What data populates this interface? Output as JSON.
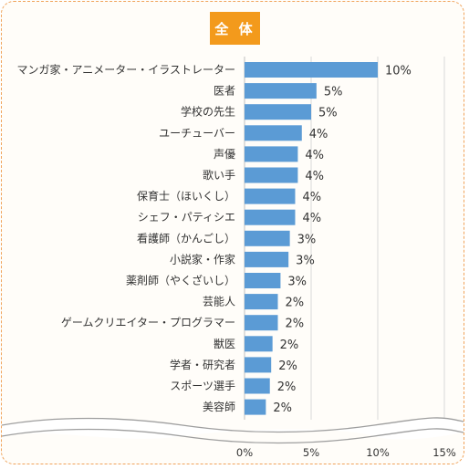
{
  "header": {
    "badge_label": "全 体"
  },
  "colors": {
    "bar": "#5b9bd5",
    "badge": "#f39a1c",
    "border": "#f0a35a",
    "grid": "#d9d9d9"
  },
  "chart_data": {
    "type": "bar",
    "orientation": "horizontal",
    "title": "全 体",
    "xlim": [
      0,
      15
    ],
    "xticks": [
      0,
      5,
      10,
      15
    ],
    "xtick_labels": [
      "0%",
      "5%",
      "10%",
      "15%"
    ],
    "grid": true,
    "categories": [
      "マンガ家・アニメーター・イラストレーター",
      "医者",
      "学校の先生",
      "ユーチューバー",
      "声優",
      "歌い手",
      "保育士（ほいくし）",
      "シェフ・パティシエ",
      "看護師（かんごし）",
      "小説家・作家",
      "薬剤師（やくざいし）",
      "芸能人",
      "ゲームクリエイター・プログラマー",
      "獣医",
      "学者・研究者",
      "スポーツ選手",
      "美容師"
    ],
    "values": [
      10.0,
      5.4,
      5.0,
      4.3,
      4.0,
      4.0,
      3.8,
      3.8,
      3.4,
      3.3,
      2.7,
      2.5,
      2.5,
      2.1,
      2.0,
      1.9,
      1.6
    ],
    "value_labels": [
      "10%",
      "5%",
      "5%",
      "4%",
      "4%",
      "4%",
      "4%",
      "4%",
      "3%",
      "3%",
      "3%",
      "2%",
      "2%",
      "2%",
      "2%",
      "2%",
      "2%"
    ]
  }
}
